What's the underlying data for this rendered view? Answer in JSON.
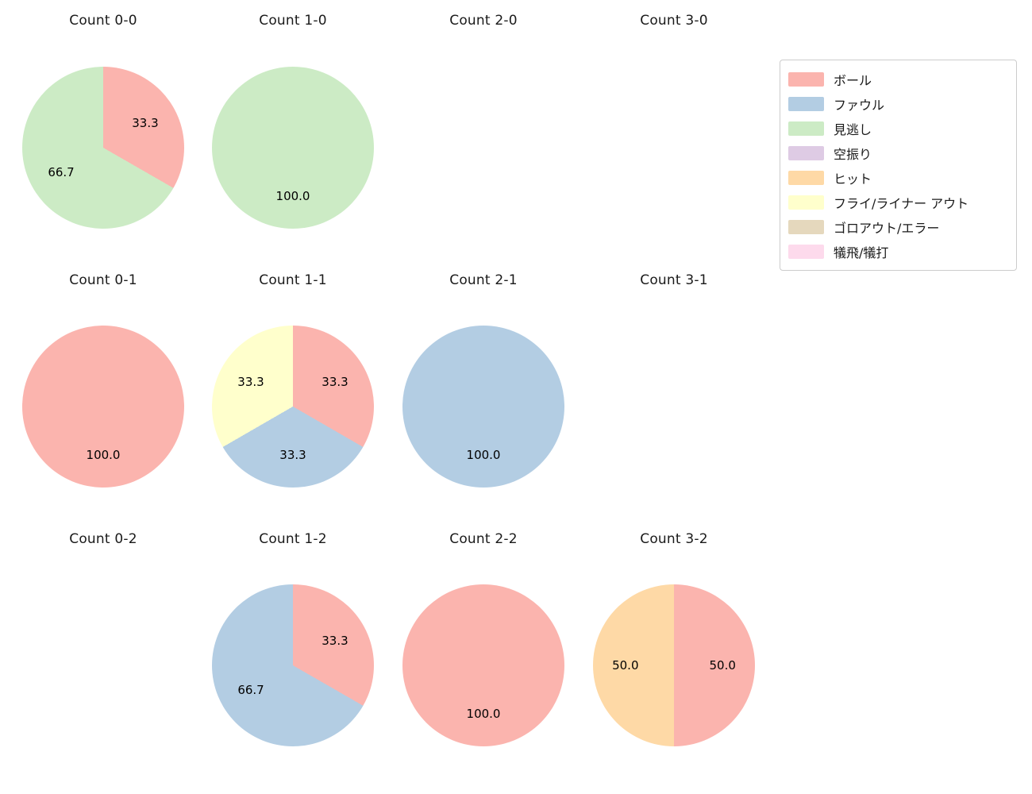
{
  "figure": {
    "background": "#ffffff"
  },
  "legend": {
    "items": [
      {
        "label": "ボール",
        "color": "#fbb4ae"
      },
      {
        "label": "ファウル",
        "color": "#b3cde3"
      },
      {
        "label": "見逃し",
        "color": "#ccebc5"
      },
      {
        "label": "空振り",
        "color": "#decbe4"
      },
      {
        "label": "ヒット",
        "color": "#fed9a6"
      },
      {
        "label": "フライ/ライナー アウト",
        "color": "#ffffcc"
      },
      {
        "label": "ゴロアウト/エラー",
        "color": "#e5d8bd"
      },
      {
        "label": "犠飛/犠打",
        "color": "#fddaec"
      }
    ]
  },
  "chart_data": [
    {
      "type": "pie",
      "title": "Count 0-0",
      "col": 0,
      "row": 0,
      "slices": [
        {
          "label": "ボール",
          "value": 33.3,
          "pct_label": "33.3",
          "color": "#fbb4ae"
        },
        {
          "label": "見逃し",
          "value": 66.7,
          "pct_label": "66.7",
          "color": "#ccebc5"
        }
      ]
    },
    {
      "type": "pie",
      "title": "Count 1-0",
      "col": 1,
      "row": 0,
      "slices": [
        {
          "label": "見逃し",
          "value": 100.0,
          "pct_label": "100.0",
          "color": "#ccebc5"
        }
      ]
    },
    {
      "type": "pie",
      "title": "Count 2-0",
      "col": 2,
      "row": 0,
      "slices": []
    },
    {
      "type": "pie",
      "title": "Count 3-0",
      "col": 3,
      "row": 0,
      "slices": []
    },
    {
      "type": "pie",
      "title": "Count 0-1",
      "col": 0,
      "row": 1,
      "slices": [
        {
          "label": "ボール",
          "value": 100.0,
          "pct_label": "100.0",
          "color": "#fbb4ae"
        }
      ]
    },
    {
      "type": "pie",
      "title": "Count 1-1",
      "col": 1,
      "row": 1,
      "slices": [
        {
          "label": "ボール",
          "value": 33.3,
          "pct_label": "33.3",
          "color": "#fbb4ae"
        },
        {
          "label": "ファウル",
          "value": 33.3,
          "pct_label": "33.3",
          "color": "#b3cde3"
        },
        {
          "label": "フライ/ライナー アウト",
          "value": 33.3,
          "pct_label": "33.3",
          "color": "#ffffcc"
        }
      ]
    },
    {
      "type": "pie",
      "title": "Count 2-1",
      "col": 2,
      "row": 1,
      "slices": [
        {
          "label": "ファウル",
          "value": 100.0,
          "pct_label": "100.0",
          "color": "#b3cde3"
        }
      ]
    },
    {
      "type": "pie",
      "title": "Count 3-1",
      "col": 3,
      "row": 1,
      "slices": []
    },
    {
      "type": "pie",
      "title": "Count 0-2",
      "col": 0,
      "row": 2,
      "slices": []
    },
    {
      "type": "pie",
      "title": "Count 1-2",
      "col": 1,
      "row": 2,
      "slices": [
        {
          "label": "ボール",
          "value": 33.3,
          "pct_label": "33.3",
          "color": "#fbb4ae"
        },
        {
          "label": "ファウル",
          "value": 66.7,
          "pct_label": "66.7",
          "color": "#b3cde3"
        }
      ]
    },
    {
      "type": "pie",
      "title": "Count 2-2",
      "col": 2,
      "row": 2,
      "slices": [
        {
          "label": "ボール",
          "value": 100.0,
          "pct_label": "100.0",
          "color": "#fbb4ae"
        }
      ]
    },
    {
      "type": "pie",
      "title": "Count 3-2",
      "col": 3,
      "row": 2,
      "slices": [
        {
          "label": "ボール",
          "value": 50.0,
          "pct_label": "50.0",
          "color": "#fbb4ae"
        },
        {
          "label": "ヒット",
          "value": 50.0,
          "pct_label": "50.0",
          "color": "#fed9a6"
        }
      ]
    }
  ]
}
